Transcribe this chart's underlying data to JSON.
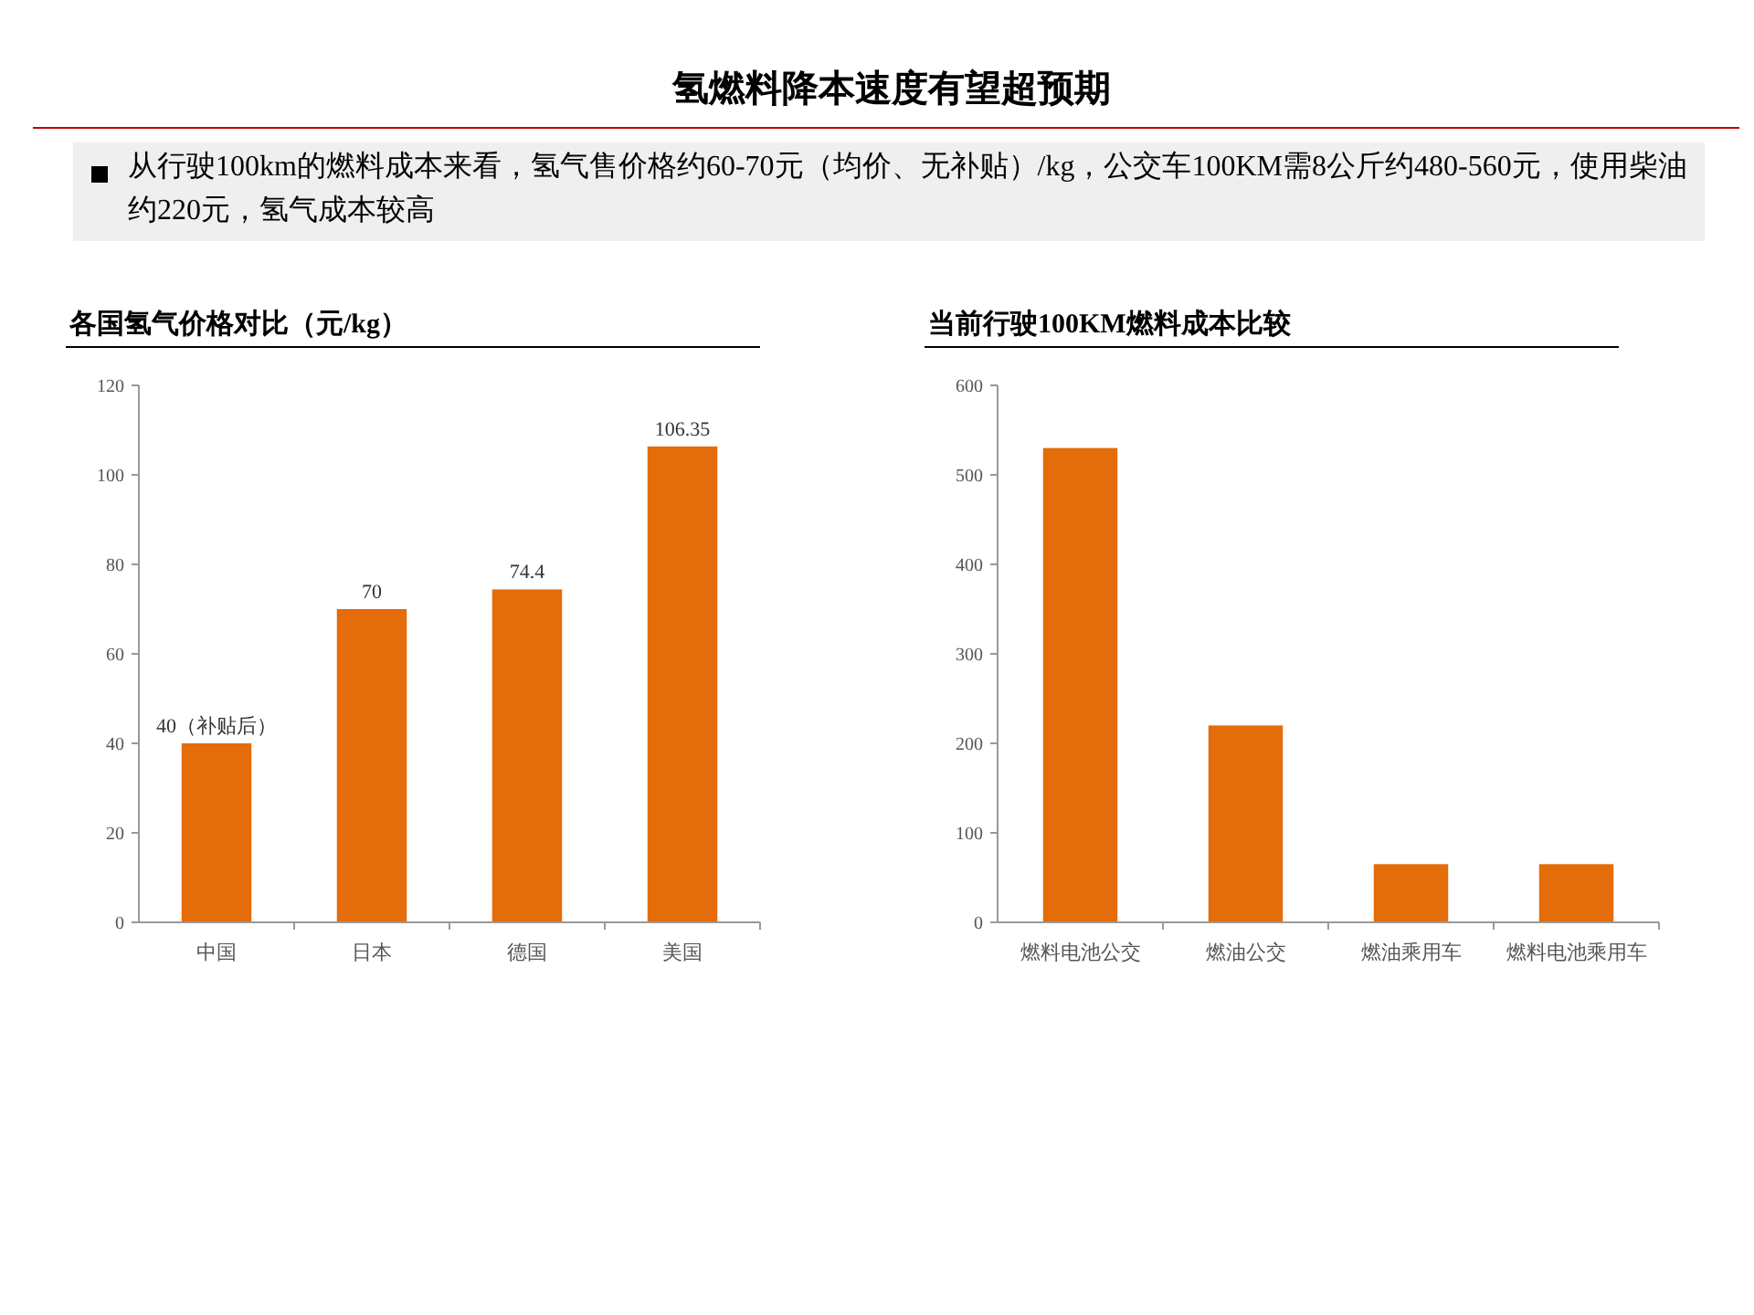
{
  "chart_data": [
    {
      "type": "other",
      "title": "氢燃料降本速度有望超预期",
      "subtitle": "从行驶100km的燃料成本来看，氢气售价格约60-70元（均价、无补贴）/kg，公交车100KM需8公斤约480-560元，使用柴油约220元，氢气成本较高"
    },
    {
      "type": "bar",
      "title": "各国氢气价格对比（元/kg）",
      "categories": [
        "中国",
        "日本",
        "德国",
        "美国"
      ],
      "values": [
        40,
        70,
        74.4,
        106.35
      ],
      "value_labels": [
        "40（补贴后）",
        "70",
        "74.4",
        "106.35"
      ],
      "color": "#e46c0a",
      "ylim": [
        0,
        120
      ],
      "yticks": [
        0,
        20,
        40,
        60,
        80,
        100,
        120
      ],
      "grid": false
    },
    {
      "type": "bar",
      "title": "当前行驶100KM燃料成本比较",
      "categories": [
        "燃料电池公交",
        "燃油公交",
        "燃油乘用车",
        "燃料电池乘用车"
      ],
      "values": [
        530,
        220,
        65,
        65
      ],
      "color": "#e46c0a",
      "ylim": [
        0,
        600
      ],
      "yticks": [
        0,
        100,
        200,
        300,
        400,
        500,
        600
      ],
      "grid": false
    }
  ]
}
